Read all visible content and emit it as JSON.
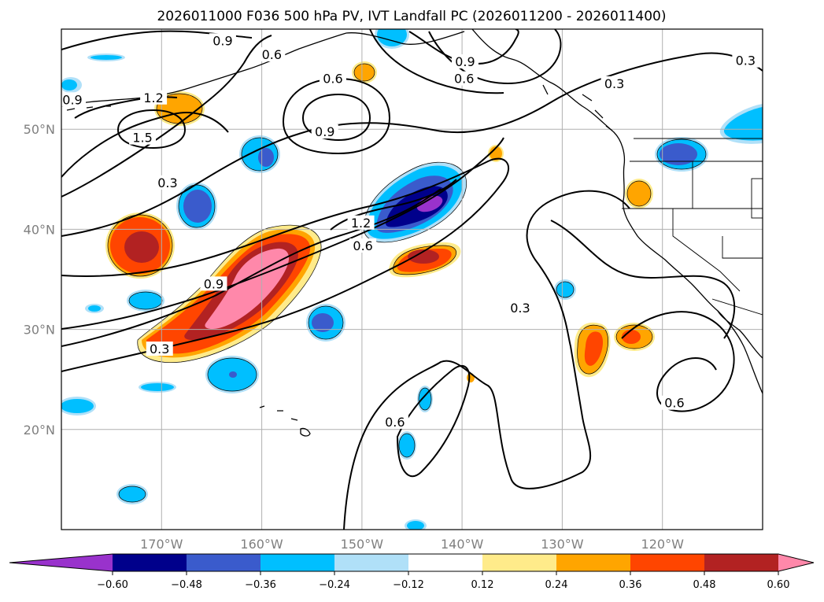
{
  "title": "2026011000 F036 500 hPa PV, IVT Landfall PC (2026011200 - 2026011400)",
  "map": {
    "lon_range": [
      -180,
      -110
    ],
    "lat_range": [
      10,
      60
    ],
    "lon_ticks": [
      {
        "value": -170,
        "label": "170°W"
      },
      {
        "value": -160,
        "label": "160°W"
      },
      {
        "value": -150,
        "label": "150°W"
      },
      {
        "value": -140,
        "label": "140°W"
      },
      {
        "value": -130,
        "label": "130°W"
      },
      {
        "value": -120,
        "label": "120°W"
      }
    ],
    "lat_ticks": [
      {
        "value": 20,
        "label": "20°N"
      },
      {
        "value": 30,
        "label": "30°N"
      },
      {
        "value": 40,
        "label": "40°N"
      },
      {
        "value": 50,
        "label": "50°N"
      }
    ],
    "grid": true
  },
  "colorbar": {
    "orientation": "horizontal",
    "extend": "both",
    "levels": [
      -0.6,
      -0.48,
      -0.36,
      -0.24,
      -0.12,
      0.12,
      0.24,
      0.36,
      0.48,
      0.6
    ],
    "tick_labels": [
      "−0.60",
      "−0.48",
      "−0.36",
      "−0.24",
      "−0.12",
      "0.12",
      "0.24",
      "0.36",
      "0.48",
      "0.60"
    ],
    "colors": [
      "#9932cc",
      "#00008b",
      "#3a5bcc",
      "#00bfff",
      "#b0e0f8",
      "#ffffff",
      "#ffeb8a",
      "#ffa500",
      "#ff4500",
      "#b22222",
      "#ff88aa"
    ]
  },
  "contour_labels": [
    {
      "text": "0.9",
      "lon": -163.9,
      "lat": 58.8
    },
    {
      "text": "0.6",
      "lon": -159.0,
      "lat": 57.4
    },
    {
      "text": "0.9",
      "lon": -178.9,
      "lat": 52.9
    },
    {
      "text": "1.2",
      "lon": -170.8,
      "lat": 53.1
    },
    {
      "text": "1.5",
      "lon": -171.9,
      "lat": 49.1
    },
    {
      "text": "0.3",
      "lon": -169.4,
      "lat": 44.6
    },
    {
      "text": "0.6",
      "lon": -152.9,
      "lat": 55.0
    },
    {
      "text": "0.9",
      "lon": -153.7,
      "lat": 49.7
    },
    {
      "text": "0.9",
      "lon": -139.7,
      "lat": 56.7
    },
    {
      "text": "0.6",
      "lon": -139.8,
      "lat": 55.0
    },
    {
      "text": "0.3",
      "lon": -124.8,
      "lat": 54.5
    },
    {
      "text": "0.3",
      "lon": -111.7,
      "lat": 56.8
    },
    {
      "text": "1.2",
      "lon": -150.1,
      "lat": 40.6
    },
    {
      "text": "0.6",
      "lon": -149.9,
      "lat": 38.3
    },
    {
      "text": "0.9",
      "lon": -164.8,
      "lat": 34.5
    },
    {
      "text": "0.3",
      "lon": -170.2,
      "lat": 28.0
    },
    {
      "text": "0.3",
      "lon": -134.2,
      "lat": 32.1
    },
    {
      "text": "0.6",
      "lon": -146.7,
      "lat": 20.7
    },
    {
      "text": "0.6",
      "lon": -118.8,
      "lat": 22.6
    }
  ]
}
